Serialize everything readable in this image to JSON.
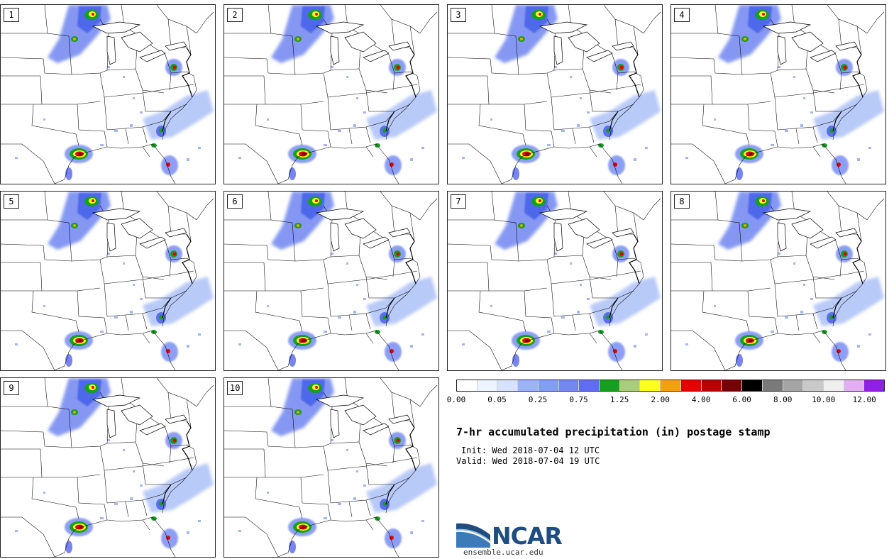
{
  "panels": [
    "1",
    "2",
    "3",
    "4",
    "5",
    "6",
    "7",
    "8",
    "9",
    "10"
  ],
  "legend": {
    "colors": [
      "#ffffff",
      "#eef4ff",
      "#d6e2ff",
      "#99b5f7",
      "#809ef5",
      "#7188f2",
      "#5f6ef0",
      "#15a020",
      "#a9cd7a",
      "#ffff20",
      "#f5a010",
      "#e50000",
      "#b80000",
      "#770000",
      "#000000",
      "#7a7a7a",
      "#a5a5a5",
      "#c9c9c9",
      "#efefef",
      "#e4aef2",
      "#9120e0"
    ],
    "tick_labels": [
      "0.00",
      "0.05",
      "0.25",
      "0.75",
      "1.25",
      "2.00",
      "4.00",
      "6.00",
      "8.00",
      "10.00",
      "12.00"
    ]
  },
  "title": "7-hr accumulated precipitation (in) postage stamp",
  "init": "Init: Wed 2018-07-04 12 UTC",
  "valid": "Valid: Wed 2018-07-04 19 UTC",
  "logo": {
    "name": "NCAR",
    "url": "ensemble.ucar.edu"
  }
}
